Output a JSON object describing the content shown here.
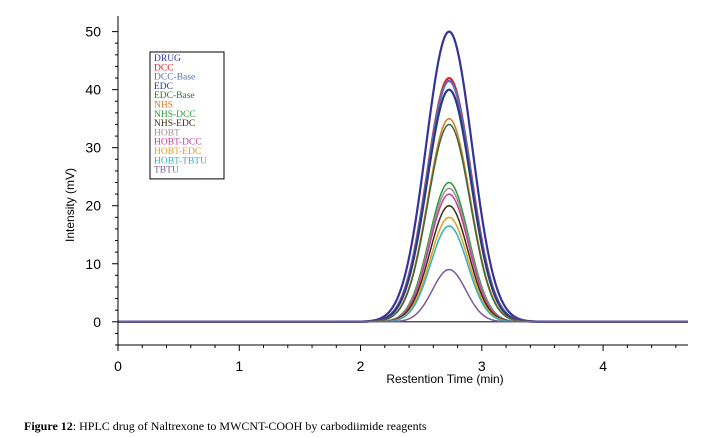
{
  "caption": {
    "label": "Figure 12",
    "text": ": HPLC drug of Naltrexone to MWCNT-COOH by carbodiimide reagents"
  },
  "chart_data": {
    "type": "line",
    "xlabel": "Restention Time (min)",
    "ylabel": "Intensity (mV)",
    "xlim": [
      0,
      4.7
    ],
    "ylim": [
      -4,
      52
    ],
    "xticks": [
      0,
      1,
      2,
      3,
      4
    ],
    "yticks": [
      0,
      10,
      20,
      30,
      40,
      50
    ],
    "legend_position": "top-left",
    "peak_center": 2.73,
    "series": [
      {
        "name": "DRUG",
        "color": "#33339a",
        "peak": 50
      },
      {
        "name": "DCC",
        "color": "#e02020",
        "peak": 42
      },
      {
        "name": "DCC-Base",
        "color": "#5a6fb8",
        "peak": 41.5
      },
      {
        "name": "EDC",
        "color": "#2a3a80",
        "peak": 40
      },
      {
        "name": "EDC-Base",
        "color": "#3a6a3a",
        "peak": 34
      },
      {
        "name": "NHS",
        "color": "#d07a20",
        "peak": 35
      },
      {
        "name": "NHS-DCC",
        "color": "#2a9a3a",
        "peak": 24
      },
      {
        "name": "NHS-EDC",
        "color": "#3a2a10",
        "peak": 20
      },
      {
        "name": "HOBT",
        "color": "#a09090",
        "peak": 23
      },
      {
        "name": "HOBT-DCC",
        "color": "#c040a0",
        "peak": 22
      },
      {
        "name": "HOBT-EDC",
        "color": "#e0a020",
        "peak": 18
      },
      {
        "name": "HOBT-TBTU",
        "color": "#30b0c0",
        "peak": 16.5
      },
      {
        "name": "TBTU",
        "color": "#7a5a9a",
        "peak": 9
      }
    ]
  }
}
